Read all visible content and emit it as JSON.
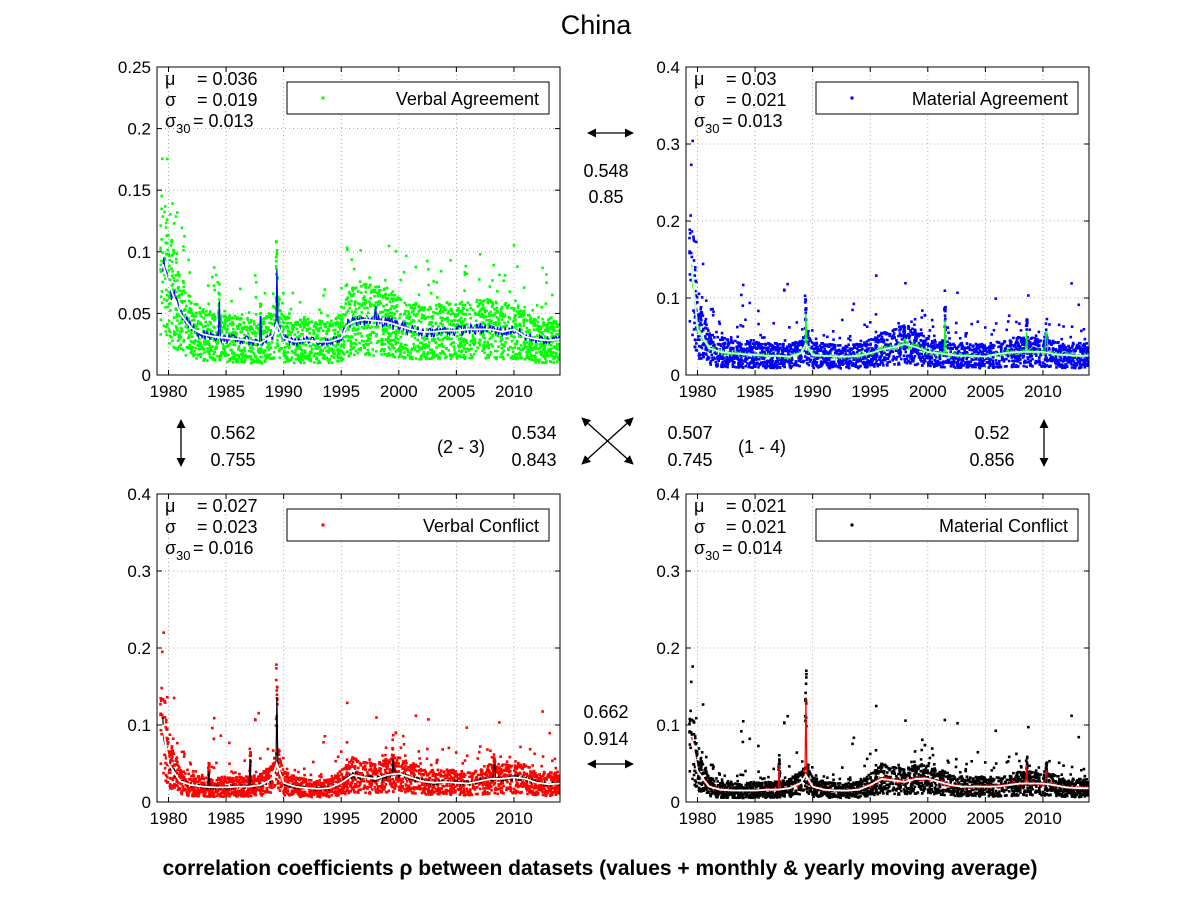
{
  "title": "China",
  "footer": "correlation coefficients ρ between datasets (values + monthly & yearly moving average)",
  "chart_data": [
    {
      "type": "scatter",
      "name": "Verbal Agreement",
      "legend": "Verbal Agreement",
      "legend_position": "top-right",
      "point_color": "#00ff00",
      "monthly_color": "#0000ff",
      "yearly_color": "#ffffff",
      "stats": {
        "mu_label": "μ",
        "mu": "= 0.036",
        "sigma_label": "σ",
        "sigma": "= 0.019",
        "sigma30_label": "σ",
        "sigma30_sub": "30",
        "sigma30": "= 0.013"
      },
      "xlim": [
        1979,
        2014
      ],
      "ylim": [
        0,
        0.25
      ],
      "xticks": [
        "1980",
        "1985",
        "1990",
        "1995",
        "2000",
        "2005",
        "2010"
      ],
      "yticks": [
        "0",
        "0.05",
        "0.1",
        "0.15",
        "0.2",
        "0.25"
      ],
      "grid": true,
      "yearly_avg": {
        "x": [
          1979.5,
          1980,
          1981,
          1982,
          1983,
          1984,
          1985,
          1986,
          1987,
          1988,
          1989,
          1989.4,
          1990,
          1991,
          1992,
          1993,
          1994,
          1995,
          1995.5,
          1996,
          1997,
          1998,
          1999,
          2000,
          2001,
          2002,
          2003,
          2004,
          2005,
          2006,
          2007,
          2008,
          2009,
          2010,
          2011,
          2012,
          2013,
          2014
        ],
        "y": [
          0.09,
          0.075,
          0.05,
          0.038,
          0.033,
          0.031,
          0.03,
          0.029,
          0.028,
          0.026,
          0.032,
          0.042,
          0.03,
          0.027,
          0.028,
          0.027,
          0.027,
          0.03,
          0.04,
          0.043,
          0.045,
          0.044,
          0.043,
          0.04,
          0.037,
          0.035,
          0.035,
          0.036,
          0.036,
          0.037,
          0.037,
          0.037,
          0.035,
          0.037,
          0.031,
          0.029,
          0.028,
          0.029
        ]
      },
      "spikes": [
        [
          1989.4,
          0.107
        ],
        [
          1984.4,
          0.075
        ],
        [
          1988,
          0.06
        ],
        [
          1998,
          0.07
        ]
      ]
    },
    {
      "type": "scatter",
      "name": "Material Agreement",
      "legend": "Material Agreement",
      "legend_position": "top-right",
      "point_color": "#0000ff",
      "monthly_color": "#00ff00",
      "yearly_color": "#ccffcc",
      "stats": {
        "mu_label": "μ",
        "mu": "= 0.03",
        "sigma_label": "σ",
        "sigma": "= 0.021",
        "sigma30_label": "σ",
        "sigma30_sub": "30",
        "sigma30": "= 0.013"
      },
      "xlim": [
        1979,
        2014
      ],
      "ylim": [
        0,
        0.4
      ],
      "xticks": [
        "1980",
        "1985",
        "1990",
        "1995",
        "2000",
        "2005",
        "2010"
      ],
      "yticks": [
        "0",
        "0.1",
        "0.2",
        "0.3",
        "0.4"
      ],
      "grid": true,
      "yearly_avg": {
        "x": [
          1979.5,
          1980,
          1981,
          1982,
          1983,
          1984,
          1985,
          1986,
          1987,
          1988,
          1989,
          1989.4,
          1990,
          1991,
          1992,
          1993,
          1994,
          1995,
          1996,
          1997,
          1998,
          1999,
          2000,
          2001,
          2002,
          2003,
          2004,
          2005,
          2006,
          2007,
          2008,
          2009,
          2010,
          2011,
          2012,
          2013,
          2014
        ],
        "y": [
          0.14,
          0.06,
          0.035,
          0.03,
          0.028,
          0.027,
          0.026,
          0.025,
          0.025,
          0.024,
          0.028,
          0.04,
          0.026,
          0.025,
          0.024,
          0.024,
          0.025,
          0.028,
          0.033,
          0.036,
          0.04,
          0.036,
          0.03,
          0.028,
          0.026,
          0.025,
          0.025,
          0.024,
          0.027,
          0.029,
          0.03,
          0.03,
          0.03,
          0.027,
          0.026,
          0.025,
          0.025
        ]
      },
      "spikes": [
        [
          1989.4,
          0.1
        ],
        [
          2001.5,
          0.09
        ],
        [
          2008.6,
          0.07
        ],
        [
          2010.3,
          0.07
        ],
        [
          1998,
          0.06
        ]
      ]
    },
    {
      "type": "scatter",
      "name": "Verbal Conflict",
      "legend": "Verbal Conflict",
      "legend_position": "top-right",
      "point_color": "#ff0000",
      "monthly_color": "#000000",
      "yearly_color": "#ffffff",
      "stats": {
        "mu_label": "μ",
        "mu": "= 0.027",
        "sigma_label": "σ",
        "sigma": "= 0.023",
        "sigma30_label": "σ",
        "sigma30_sub": "30",
        "sigma30": "= 0.016"
      },
      "xlim": [
        1979,
        2014
      ],
      "ylim": [
        0,
        0.4
      ],
      "xticks": [
        "1980",
        "1985",
        "1990",
        "1995",
        "2000",
        "2005",
        "2010"
      ],
      "yticks": [
        "0",
        "0.1",
        "0.2",
        "0.3",
        "0.4"
      ],
      "grid": true,
      "yearly_avg": {
        "x": [
          1979.5,
          1980,
          1981,
          1982,
          1983,
          1984,
          1985,
          1986,
          1987,
          1988,
          1989,
          1989.4,
          1990,
          1991,
          1992,
          1993,
          1994,
          1995,
          1996,
          1997,
          1998,
          1999,
          2000,
          2001,
          2002,
          2003,
          2004,
          2005,
          2006,
          2007,
          2008,
          2009,
          2010,
          2011,
          2012,
          2013,
          2014
        ],
        "y": [
          0.1,
          0.05,
          0.027,
          0.022,
          0.02,
          0.019,
          0.019,
          0.02,
          0.02,
          0.022,
          0.03,
          0.05,
          0.025,
          0.02,
          0.018,
          0.017,
          0.018,
          0.025,
          0.035,
          0.032,
          0.03,
          0.035,
          0.037,
          0.032,
          0.027,
          0.025,
          0.026,
          0.025,
          0.024,
          0.027,
          0.03,
          0.03,
          0.032,
          0.03,
          0.025,
          0.023,
          0.024
        ]
      },
      "spikes": [
        [
          1989.4,
          0.17
        ],
        [
          1987.1,
          0.07
        ],
        [
          1999.5,
          0.07
        ],
        [
          2008.3,
          0.06
        ],
        [
          1983.5,
          0.05
        ]
      ]
    },
    {
      "type": "scatter",
      "name": "Material Conflict",
      "legend": "Material Conflict",
      "legend_position": "top-right",
      "point_color": "#000000",
      "monthly_color": "#ff0000",
      "yearly_color": "#ffffff",
      "stats": {
        "mu_label": "μ",
        "mu": "= 0.021",
        "sigma_label": "σ",
        "sigma": "= 0.021",
        "sigma30_label": "σ",
        "sigma30_sub": "30",
        "sigma30": "= 0.014"
      },
      "xlim": [
        1979,
        2014
      ],
      "ylim": [
        0,
        0.4
      ],
      "xticks": [
        "1980",
        "1985",
        "1990",
        "1995",
        "2000",
        "2005",
        "2010"
      ],
      "yticks": [
        "0",
        "0.1",
        "0.2",
        "0.3",
        "0.4"
      ],
      "grid": true,
      "yearly_avg": {
        "x": [
          1979.5,
          1980,
          1981,
          1982,
          1983,
          1984,
          1985,
          1986,
          1987,
          1988,
          1989,
          1989.4,
          1990,
          1991,
          1992,
          1993,
          1994,
          1995,
          1996,
          1997,
          1998,
          1999,
          2000,
          2001,
          2002,
          2003,
          2004,
          2005,
          2006,
          2007,
          2008,
          2009,
          2010,
          2011,
          2012,
          2013,
          2014
        ],
        "y": [
          0.08,
          0.04,
          0.02,
          0.016,
          0.015,
          0.015,
          0.015,
          0.016,
          0.016,
          0.018,
          0.025,
          0.035,
          0.02,
          0.016,
          0.015,
          0.015,
          0.016,
          0.022,
          0.03,
          0.028,
          0.026,
          0.03,
          0.03,
          0.026,
          0.022,
          0.02,
          0.02,
          0.02,
          0.02,
          0.022,
          0.024,
          0.024,
          0.024,
          0.022,
          0.019,
          0.018,
          0.018
        ]
      },
      "spikes": [
        [
          1989.4,
          0.17
        ],
        [
          1987.1,
          0.06
        ],
        [
          2008.6,
          0.06
        ],
        [
          2010.3,
          0.05
        ]
      ]
    }
  ],
  "correlations": {
    "top": {
      "rho": "0.548",
      "rho_avg": "0.85"
    },
    "bottom": {
      "rho": "0.662",
      "rho_avg": "0.914"
    },
    "left": {
      "rho": "0.562",
      "rho_avg": "0.755"
    },
    "right": {
      "rho": "0.52",
      "rho_avg": "0.856"
    },
    "diag_2_3": {
      "label": "(2 - 3)",
      "rho": "0.534",
      "rho_avg": "0.843"
    },
    "diag_1_4": {
      "label": "(1 - 4)",
      "rho": "0.507",
      "rho_avg": "0.745"
    }
  }
}
